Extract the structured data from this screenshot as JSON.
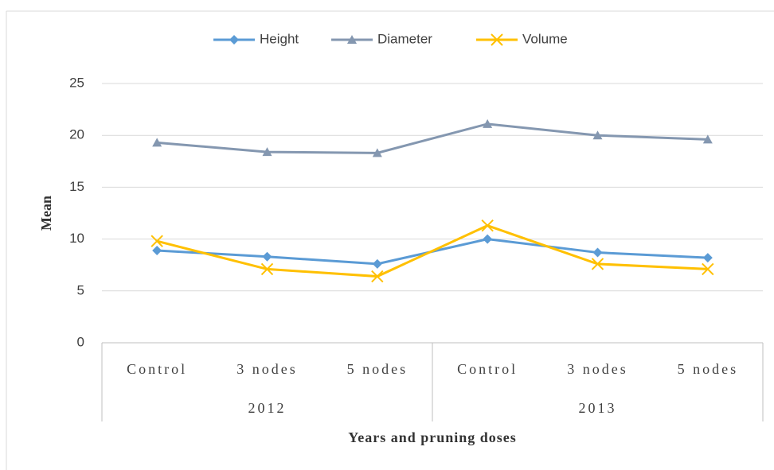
{
  "chart_data": {
    "type": "line",
    "categories": [
      "Control",
      "3 nodes",
      "5 nodes",
      "Control",
      "3 nodes",
      "5 nodes"
    ],
    "groups": [
      "2012",
      "2013"
    ],
    "series": [
      {
        "name": "Height",
        "color": "#5b9bd5",
        "marker": "diamond",
        "values": [
          8.9,
          8.3,
          7.6,
          10.0,
          8.7,
          8.2
        ]
      },
      {
        "name": "Diameter",
        "color": "#8497b0",
        "marker": "triangle",
        "values": [
          19.3,
          18.4,
          18.3,
          21.1,
          20.0,
          19.6
        ]
      },
      {
        "name": "Volume",
        "color": "#ffc000",
        "marker": "x",
        "values": [
          9.8,
          7.1,
          6.4,
          11.3,
          7.6,
          7.1
        ]
      }
    ],
    "ylim": [
      0,
      25
    ],
    "yticks": [
      0,
      5,
      10,
      15,
      20,
      25
    ],
    "grid": true,
    "ylabel": "Mean",
    "xlabel": "Years and pruning doses",
    "legend": "top"
  }
}
